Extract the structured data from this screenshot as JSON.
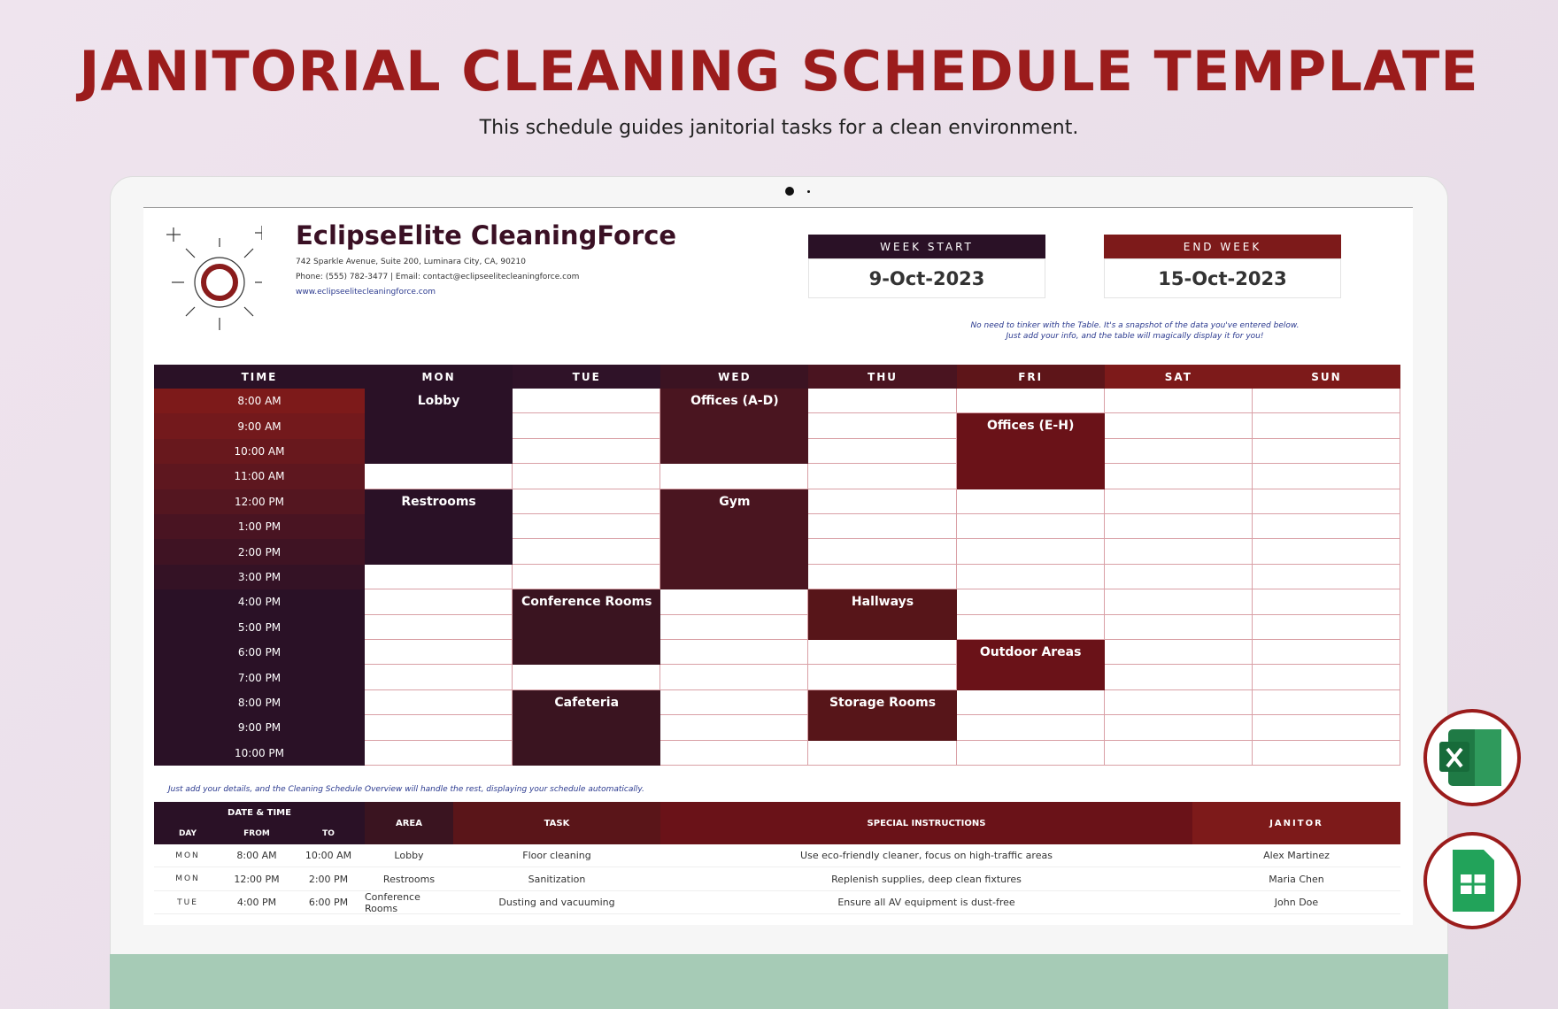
{
  "header": {
    "title": "JANITORIAL CLEANING SCHEDULE TEMPLATE",
    "subtitle": "This schedule guides janitorial tasks for a clean environment."
  },
  "company": {
    "name": "EclipseElite CleaningForce",
    "address": "742 Sparkle Avenue, Suite 200, Luminara City, CA, 90210",
    "contact": "Phone: (555) 782-3477 | Email: contact@eclipseelitecleaningforce.com",
    "website": "www.eclipseelitecleaningforce.com"
  },
  "week": {
    "start_label": "WEEK START",
    "start": "9-Oct-2023",
    "end_label": "END WEEK",
    "end": "15-Oct-2023"
  },
  "notes": {
    "overview_1": "No need to tinker with the Table. It's a snapshot of the data you've entered below.",
    "overview_2": "Just add your info, and the table will magically display it for you!",
    "details": "Just add your details, and the Cleaning Schedule Overview will handle the rest, displaying your schedule automatically."
  },
  "schedule": {
    "columns": [
      "TIME",
      "MON",
      "TUE",
      "WED",
      "THU",
      "FRI",
      "SAT",
      "SUN"
    ],
    "times": [
      "8:00 AM",
      "9:00 AM",
      "10:00 AM",
      "11:00 AM",
      "12:00 PM",
      "1:00 PM",
      "2:00 PM",
      "3:00 PM",
      "4:00 PM",
      "5:00 PM",
      "6:00 PM",
      "7:00 PM",
      "8:00 PM",
      "9:00 PM",
      "10:00 PM"
    ],
    "blocks": [
      {
        "day": "MON",
        "from": "8:00 AM",
        "to": "10:00 AM",
        "label": "Lobby"
      },
      {
        "day": "MON",
        "from": "12:00 PM",
        "to": "2:00 PM",
        "label": "Restrooms"
      },
      {
        "day": "TUE",
        "from": "4:00 PM",
        "to": "6:00 PM",
        "label": "Conference Rooms"
      },
      {
        "day": "TUE",
        "from": "8:00 PM",
        "to": "10:00 PM",
        "label": "Cafeteria"
      },
      {
        "day": "WED",
        "from": "8:00 AM",
        "to": "10:00 AM",
        "label": "Offices (A-D)"
      },
      {
        "day": "WED",
        "from": "12:00 PM",
        "to": "3:00 PM",
        "label": "Gym"
      },
      {
        "day": "THU",
        "from": "4:00 PM",
        "to": "5:00 PM",
        "label": "Hallways"
      },
      {
        "day": "THU",
        "from": "8:00 PM",
        "to": "9:00 PM",
        "label": "Storage Rooms"
      },
      {
        "day": "FRI",
        "from": "9:00 AM",
        "to": "11:00 AM",
        "label": "Offices (E-H)"
      },
      {
        "day": "FRI",
        "from": "6:00 PM",
        "to": "7:00 PM",
        "label": "Outdoor Areas"
      }
    ]
  },
  "table": {
    "group_header": "DATE & TIME",
    "headers": [
      "DAY",
      "FROM",
      "TO",
      "AREA",
      "TASK",
      "SPECIAL INSTRUCTIONS",
      "JANITOR"
    ],
    "rows": [
      [
        "MON",
        "8:00 AM",
        "10:00 AM",
        "Lobby",
        "Floor cleaning",
        "Use eco-friendly cleaner, focus on high-traffic areas",
        "Alex Martinez"
      ],
      [
        "MON",
        "12:00 PM",
        "2:00 PM",
        "Restrooms",
        "Sanitization",
        "Replenish supplies, deep clean fixtures",
        "Maria Chen"
      ],
      [
        "TUE",
        "4:00 PM",
        "6:00 PM",
        "Conference Rooms",
        "Dusting and vacuuming",
        "Ensure all AV equipment is dust-free",
        "John Doe"
      ]
    ]
  }
}
